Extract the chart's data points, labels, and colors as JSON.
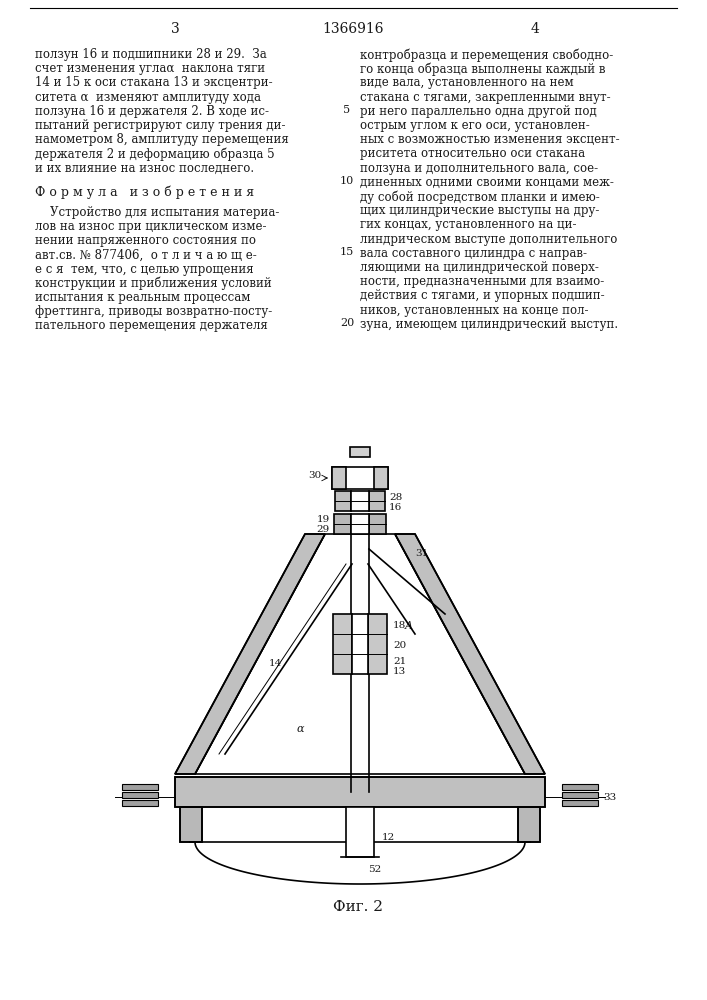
{
  "page_number_left": "3",
  "page_number_center": "1366916",
  "page_number_right": "4",
  "left_column_text": [
    "ползун 16 и подшипники 28 и 29.  За",
    "счет изменения углаα  наклона тяги",
    "14 и 15 к оси стакана 13 и эксцентри-",
    "ситета α  изменяют амплитуду хода",
    "ползуна 16 и держателя 2. В ходе ис-",
    "пытаний регистрируют силу трения ди-",
    "намометром 8, амплитуду перемещения",
    "держателя 2 и деформацию образца 5",
    "и их влияние на износ последнего."
  ],
  "formula_title": "Ф о р м у л а   и з о б р е т е н и я",
  "formula_text": [
    "    Устройство для испытания материа-",
    "лов на износ при циклическом изме-",
    "нении напряженного состояния по",
    "авт.св. № 877406,  о т л и ч а ю щ е-",
    "е с я  тем, что, с целью упрощения",
    "конструкции и приближения условий",
    "испытания к реальным процессам",
    "фреттинга, приводы возвратно-посту-",
    "пательного перемещения держателя"
  ],
  "right_column_text": [
    "контробразца и перемещения свободно-",
    "го конца образца выполнены каждый в",
    "виде вала, установленного на нем",
    "стакана с тягами, закрепленными внут-",
    "ри него параллельно одна другой под",
    "острым углом к его оси, установлен-",
    "ных с возможностью изменения эксцент-",
    "риситета относительно оси стакана",
    "ползуна и дополнительного вала, сое-",
    "диненных одними своими концами меж-",
    "ду собой посредством планки и имею-",
    "щих цилиндрические выступы на дру-",
    "гих концах, установленного на ци-",
    "линдрическом выступе дополнительного",
    "вала составного цилиндра с направ-",
    "ляющими на цилиндрической поверх-",
    "ности, предназначенными для взаимо-",
    "действия с тягами, и упорных подшип-",
    "ников, установленных на конце пол-",
    "зуна, имеющем цилиндрический выступ."
  ],
  "line_numbers_right": [
    "5",
    "10",
    "15",
    "20"
  ],
  "fig_label": "Фиг. 2",
  "background_color": "#ffffff",
  "text_color": "#1a1a1a",
  "line_color": "#000000",
  "font_size_body": 8.5,
  "font_size_header": 9.5,
  "font_size_formula": 9.0
}
